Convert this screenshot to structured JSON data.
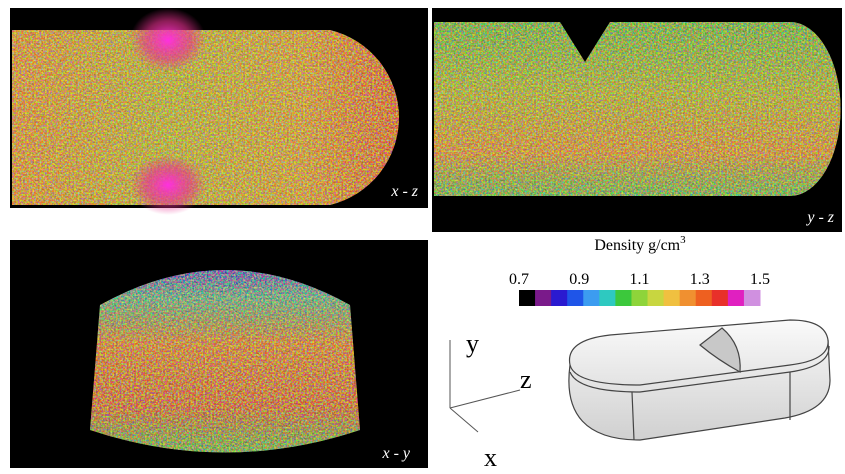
{
  "panels": {
    "xz": {
      "label": "x - z"
    },
    "yz": {
      "label": "y - z"
    },
    "xy": {
      "label": "x - y"
    }
  },
  "colorbar": {
    "title": "Density g/cm",
    "title_sup": "3",
    "range": [
      0.7,
      1.5
    ],
    "ticks": [
      0.7,
      0.9,
      1.1,
      1.3,
      1.5
    ],
    "colors": [
      "#000000",
      "#7a1a8a",
      "#2a1ad0",
      "#1f55e8",
      "#3c9cf0",
      "#2ec9c0",
      "#3cc83c",
      "#8ed43a",
      "#c8d640",
      "#f0c040",
      "#f09030",
      "#ee6020",
      "#e8302a",
      "#e020c0",
      "#d090e0"
    ]
  },
  "axes": {
    "y": "y",
    "z": "z",
    "x": "x"
  }
}
